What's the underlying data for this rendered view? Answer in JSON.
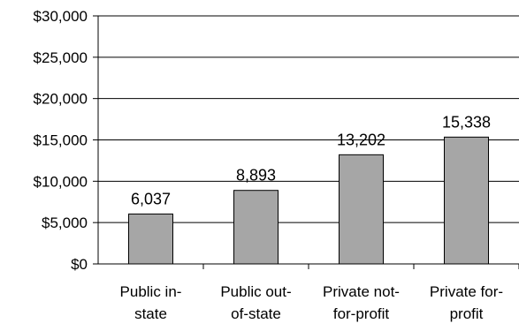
{
  "chart_data": {
    "type": "bar",
    "categories": [
      [
        "Public in-",
        "state"
      ],
      [
        "Public out-",
        "of-state"
      ],
      [
        "Private not-",
        "for-profit"
      ],
      [
        "Private for-",
        "profit"
      ]
    ],
    "values": [
      6037,
      8893,
      13202,
      15338
    ],
    "data_labels": [
      "6,037",
      "8,893",
      "13,202",
      "15,338"
    ],
    "ylim": [
      0,
      30000
    ],
    "yticks": [
      0,
      5000,
      10000,
      15000,
      20000,
      25000,
      30000
    ],
    "ytick_labels": [
      "$0",
      "$5,000",
      "$10,000",
      "$15,000",
      "$20,000",
      "$25,000",
      "$30,000"
    ],
    "grid": true,
    "bar_color": "#a6a6a6",
    "bar_stroke": "#000000"
  }
}
